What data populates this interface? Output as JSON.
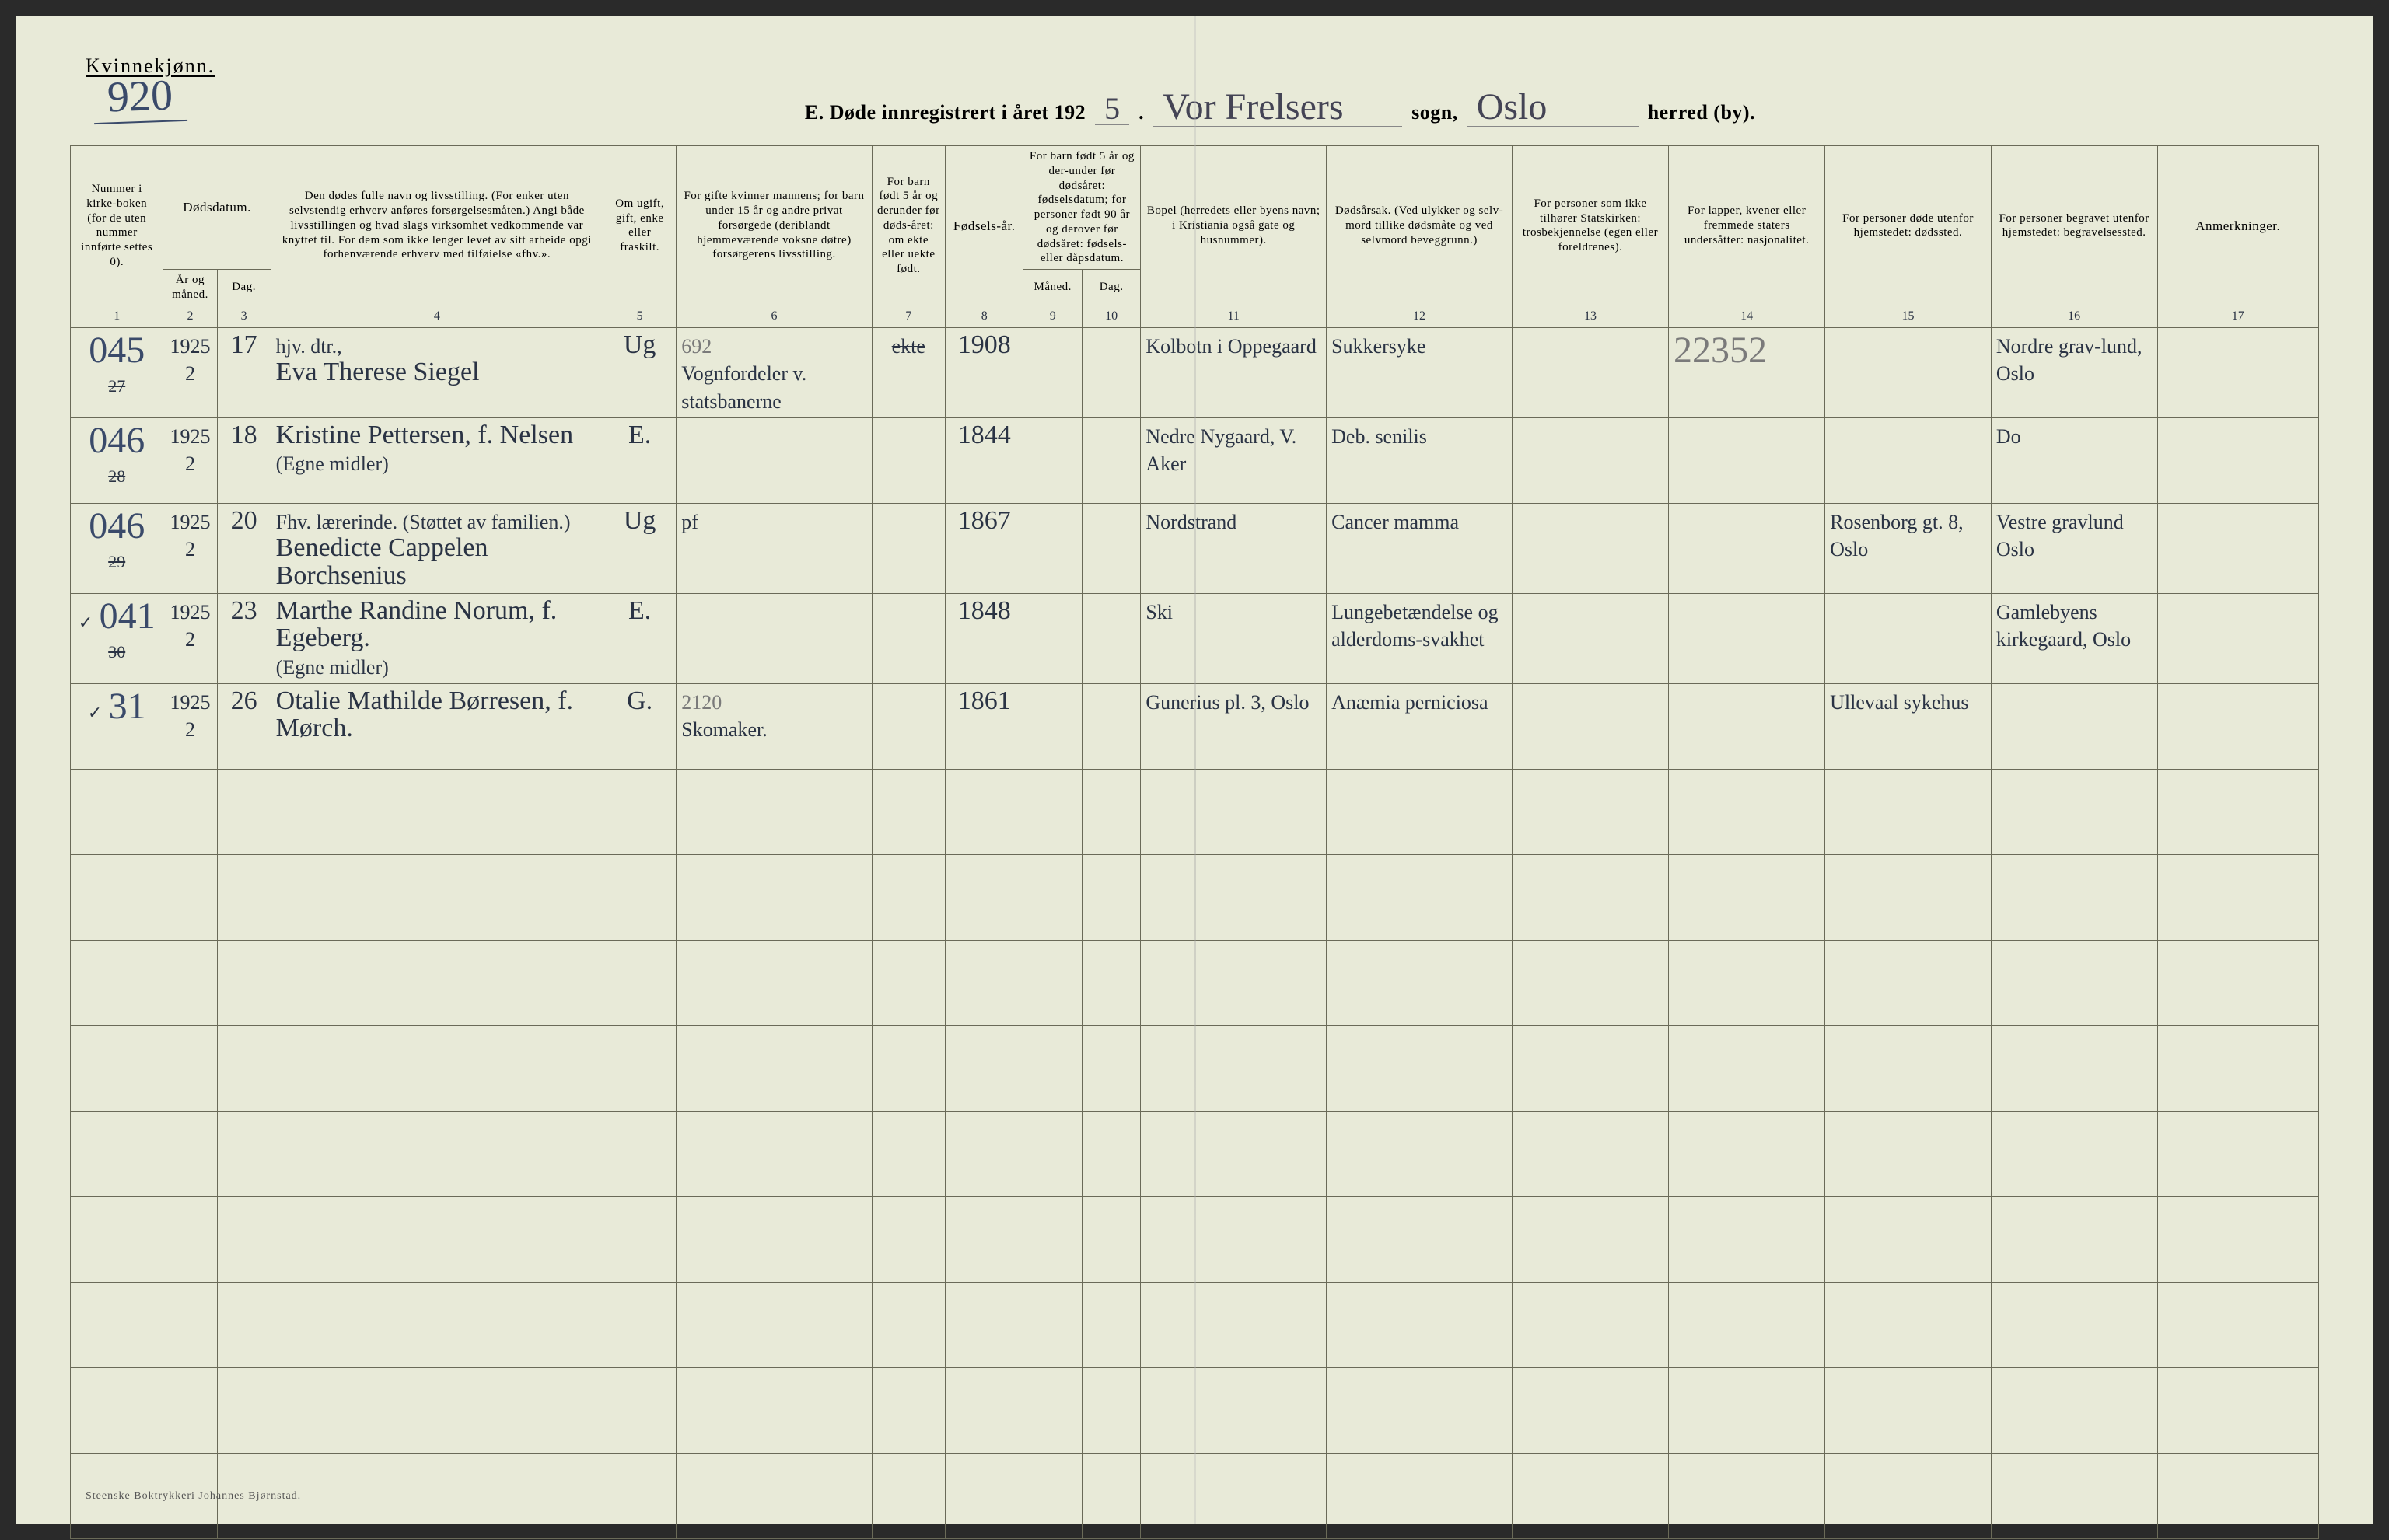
{
  "header": {
    "gender_label": "Kvinnekjønn.",
    "page_number": "920",
    "title_prefix": "E.  Døde innregistrert i året 192",
    "year_suffix": "5",
    "sogn_value": "Vor Frelsers",
    "sogn_label": "sogn,",
    "herred_value": "Oslo",
    "herred_label": "herred (by)."
  },
  "columns": {
    "c1": "Nummer i kirke-boken (for de uten nummer innførte settes 0).",
    "c2_top": "Dødsdatum.",
    "c2a": "År og måned.",
    "c2b": "Dag.",
    "c4": "Den dødes fulle navn og livsstilling. (For enker uten selvstendig erhverv anføres forsørgelsesmåten.) Angi både livsstillingen og hvad slags virksomhet vedkommende var knyttet til. For dem som ikke lenger levet av sitt arbeide opgi forhenværende erhverv med tilføielse «fhv.».",
    "c5": "Om ugift, gift, enke eller fraskilt.",
    "c6": "For gifte kvinner mannens; for barn under 15 år og andre privat forsørgede (deriblandt hjemmeværende voksne døtre) forsørgerens livsstilling.",
    "c7": "For barn født 5 år og derunder før døds-året: om ekte eller uekte født.",
    "c8": "Fødsels-år.",
    "c9_top": "For barn født 5 år og der-under før dødsåret: fødselsdatum; for personer født 90 år og derover før dødsåret: fødsels- eller dåpsdatum.",
    "c9a": "Måned.",
    "c9b": "Dag.",
    "c11": "Bopel (herredets eller byens navn; i Kristiania også gate og husnummer).",
    "c12": "Dødsårsak. (Ved ulykker og selv-mord tillike dødsmåte og ved selvmord beveggrunn.)",
    "c13": "For personer som ikke tilhører Statskirken: trosbekjennelse (egen eller foreldrenes).",
    "c14": "For lapper, kvener eller fremmede staters undersåtter: nasjonalitet.",
    "c15": "For personer døde utenfor hjemstedet: dødssted.",
    "c16": "For personer begravet utenfor hjemstedet: begravelsessted.",
    "c17": "Anmerkninger."
  },
  "colnums": [
    "1",
    "2",
    "3",
    "4",
    "5",
    "6",
    "7",
    "8",
    "9",
    "10",
    "11",
    "12",
    "13",
    "14",
    "15",
    "16",
    "17"
  ],
  "rows": [
    {
      "num_strike": "27",
      "num_hand": "045",
      "year": "1925",
      "month": "2",
      "day": "17",
      "name_top": "hjv. dtr.,",
      "name": "Eva Therese Siegel",
      "civil": "Ug",
      "occupation_top": "692",
      "occupation": "Vognfordeler v. statsbanerne",
      "c7": "",
      "c7_strike": "ekte",
      "birth": "1908",
      "residence": "Kolbotn i Oppegaard",
      "cause": "Sukkersyke",
      "c14": "22352",
      "burial": "Nordre grav-lund, Oslo"
    },
    {
      "num_strike": "28",
      "num_hand": "046",
      "year": "1925",
      "month": "2",
      "day": "18",
      "name": "Kristine Pettersen, f. Nelsen",
      "name_sub": "(Egne midler)",
      "civil": "E.",
      "birth": "1844",
      "residence": "Nedre Nygaard, V. Aker",
      "cause": "Deb. senilis",
      "burial": "Do"
    },
    {
      "num_strike": "29",
      "num_hand": "046",
      "year": "1925",
      "month": "2",
      "day": "20",
      "name_top": "Fhv. lærerinde. (Støttet av familien.)",
      "name": "Benedicte Cappelen Borchsenius",
      "civil": "Ug",
      "occupation": "pf",
      "birth": "1867",
      "residence": "Nordstrand",
      "cause": "Cancer mamma",
      "death_place": "Rosenborg gt. 8, Oslo",
      "burial": "Vestre gravlund Oslo"
    },
    {
      "num_strike": "30",
      "num_hand": "041",
      "check": "✓",
      "year": "1925",
      "month": "2",
      "day": "23",
      "name": "Marthe Randine Norum, f. Egeberg.",
      "name_sub": "(Egne midler)",
      "civil": "E.",
      "birth": "1848",
      "residence": "Ski",
      "cause": "Lungebetændelse og alderdoms-svakhet",
      "burial": "Gamlebyens kirkegaard, Oslo"
    },
    {
      "num_strike": "",
      "num_hand": "31",
      "check": "✓",
      "year": "1925",
      "month": "2",
      "day": "26",
      "name": "Otalie Mathilde Børresen, f. Mørch.",
      "civil": "G.",
      "occupation_top": "2120",
      "occupation": "Skomaker.",
      "birth": "1861",
      "residence": "Gunerius pl. 3, Oslo",
      "cause": "Anæmia perniciosa",
      "death_place": "Ullevaal sykehus"
    }
  ],
  "empty_rows": 9,
  "footer": "Steenske Boktrykkeri Johannes Bjørnstad.",
  "colors": {
    "paper": "#e8ead8",
    "rule": "#6a6a58",
    "ink_script": "#2a3344",
    "ink_blue": "#3a4a6a",
    "ink_pencil": "#7a7a7a"
  }
}
